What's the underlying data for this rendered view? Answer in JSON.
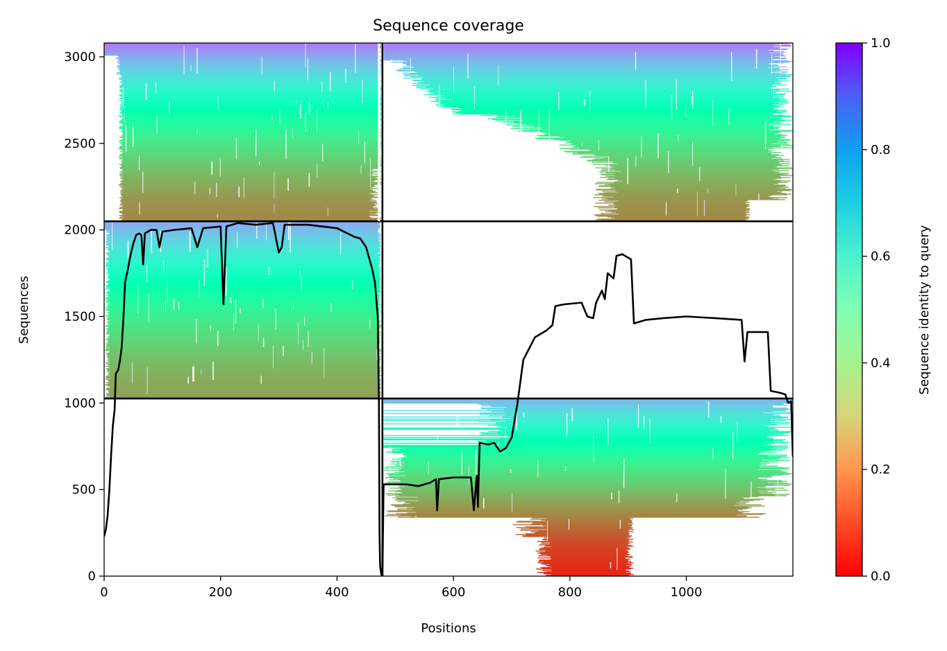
{
  "chart_data": {
    "type": "heatmap",
    "title": "Sequence coverage",
    "xlabel": "Positions",
    "ylabel": "Sequences",
    "xlim": [
      0,
      1183
    ],
    "ylim": [
      0,
      3080
    ],
    "xticks": [
      0,
      200,
      400,
      600,
      800,
      1000
    ],
    "yticks": [
      0,
      500,
      1000,
      1500,
      2000,
      2500,
      3000
    ],
    "xtick_labels": [
      "0",
      "200",
      "400",
      "600",
      "800",
      "1000"
    ],
    "ytick_labels": [
      "0",
      "500",
      "1000",
      "1500",
      "2000",
      "2500",
      "3000"
    ],
    "colorbar": {
      "label": "Sequence identity to query",
      "range": [
        0,
        1
      ],
      "ticks": [
        "0.0",
        "0.2",
        "0.4",
        "0.6",
        "0.8",
        "1.0"
      ],
      "colormap": "rainbow_r"
    },
    "chain_boundary_x": 478,
    "block_boundaries_y": [
      1026,
      2050
    ],
    "blocks": [
      {
        "x": [
          0,
          478
        ],
        "y": [
          2050,
          3080
        ],
        "identity_top": 0.85,
        "identity_bottom": 0.18
      },
      {
        "x": [
          478,
          1183
        ],
        "y": [
          2050,
          3080
        ],
        "identity_top": 0.85,
        "identity_bottom": 0.18
      },
      {
        "x": [
          0,
          478
        ],
        "y": [
          1026,
          2050
        ],
        "identity_top": 0.78,
        "identity_bottom": 0.22
      },
      {
        "x": [
          478,
          1183
        ],
        "y": [
          0,
          1026
        ],
        "identity_top": 0.75,
        "identity_bottom": 0.05
      }
    ],
    "coverage_line": {
      "color": "#000000",
      "points": [
        [
          0,
          230
        ],
        [
          3,
          270
        ],
        [
          6,
          350
        ],
        [
          9,
          500
        ],
        [
          12,
          700
        ],
        [
          15,
          870
        ],
        [
          18,
          960
        ],
        [
          20,
          1170
        ],
        [
          24,
          1190
        ],
        [
          27,
          1240
        ],
        [
          30,
          1320
        ],
        [
          33,
          1480
        ],
        [
          36,
          1700
        ],
        [
          40,
          1760
        ],
        [
          45,
          1850
        ],
        [
          50,
          1920
        ],
        [
          55,
          1970
        ],
        [
          60,
          1980
        ],
        [
          64,
          1970
        ],
        [
          67,
          1800
        ],
        [
          70,
          1980
        ],
        [
          80,
          2000
        ],
        [
          90,
          2000
        ],
        [
          95,
          1900
        ],
        [
          100,
          1990
        ],
        [
          120,
          2000
        ],
        [
          150,
          2010
        ],
        [
          160,
          1900
        ],
        [
          170,
          2010
        ],
        [
          200,
          2020
        ],
        [
          205,
          1570
        ],
        [
          210,
          2020
        ],
        [
          230,
          2040
        ],
        [
          260,
          2030
        ],
        [
          290,
          2040
        ],
        [
          300,
          1870
        ],
        [
          305,
          1900
        ],
        [
          310,
          2030
        ],
        [
          350,
          2030
        ],
        [
          400,
          2010
        ],
        [
          430,
          1960
        ],
        [
          440,
          1950
        ],
        [
          450,
          1900
        ],
        [
          460,
          1780
        ],
        [
          465,
          1700
        ],
        [
          470,
          1500
        ],
        [
          472,
          1000
        ],
        [
          473,
          250
        ],
        [
          474,
          60
        ],
        [
          476,
          10
        ],
        [
          478,
          0
        ],
        [
          480,
          530
        ],
        [
          500,
          530
        ],
        [
          520,
          530
        ],
        [
          540,
          520
        ],
        [
          560,
          540
        ],
        [
          570,
          560
        ],
        [
          572,
          380
        ],
        [
          575,
          560
        ],
        [
          600,
          570
        ],
        [
          630,
          570
        ],
        [
          635,
          380
        ],
        [
          640,
          580
        ],
        [
          642,
          400
        ],
        [
          645,
          770
        ],
        [
          660,
          760
        ],
        [
          670,
          770
        ],
        [
          680,
          720
        ],
        [
          690,
          740
        ],
        [
          700,
          800
        ],
        [
          710,
          1000
        ],
        [
          720,
          1250
        ],
        [
          740,
          1380
        ],
        [
          760,
          1420
        ],
        [
          770,
          1450
        ],
        [
          775,
          1560
        ],
        [
          790,
          1570
        ],
        [
          820,
          1580
        ],
        [
          830,
          1500
        ],
        [
          840,
          1490
        ],
        [
          845,
          1580
        ],
        [
          855,
          1650
        ],
        [
          860,
          1600
        ],
        [
          865,
          1750
        ],
        [
          875,
          1720
        ],
        [
          880,
          1850
        ],
        [
          890,
          1860
        ],
        [
          905,
          1830
        ],
        [
          910,
          1460
        ],
        [
          930,
          1480
        ],
        [
          960,
          1490
        ],
        [
          1000,
          1500
        ],
        [
          1050,
          1490
        ],
        [
          1095,
          1480
        ],
        [
          1100,
          1240
        ],
        [
          1105,
          1410
        ],
        [
          1140,
          1410
        ],
        [
          1145,
          1070
        ],
        [
          1160,
          1060
        ],
        [
          1170,
          1050
        ],
        [
          1175,
          1000
        ],
        [
          1180,
          1010
        ],
        [
          1183,
          690
        ]
      ]
    }
  }
}
